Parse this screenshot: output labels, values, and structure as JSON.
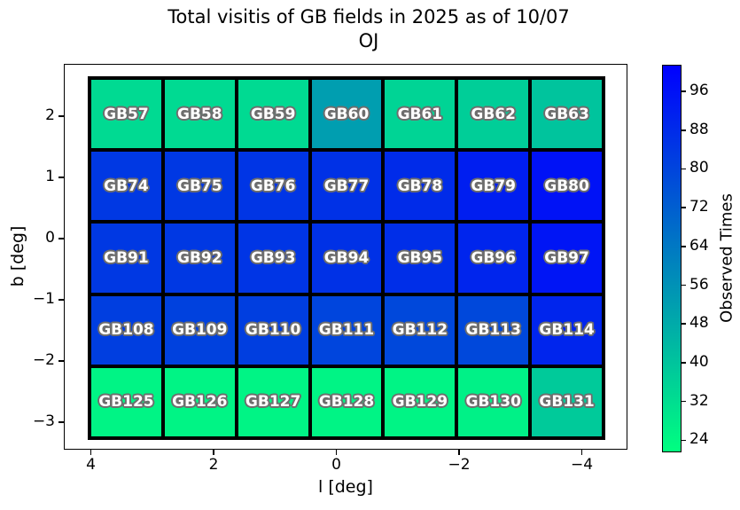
{
  "title": {
    "line1": "Total visitis of GB fields in 2025 as of 10/07",
    "line2": "OJ"
  },
  "chart_data": {
    "type": "heatmap",
    "title": "Total visitis of GB fields in 2025 as of 10/07",
    "subtitle": "OJ",
    "xlabel": "l [deg]",
    "ylabel": "b [deg]",
    "x_axis_reversed": true,
    "x_ticks": [
      {
        "value": 4,
        "label": "4"
      },
      {
        "value": 2,
        "label": "2"
      },
      {
        "value": 0,
        "label": "0"
      },
      {
        "value": -2,
        "label": "−2"
      },
      {
        "value": -4,
        "label": "−4"
      }
    ],
    "y_ticks": [
      {
        "value": 2,
        "label": "2"
      },
      {
        "value": 1,
        "label": "1"
      },
      {
        "value": 0,
        "label": "0"
      },
      {
        "value": -1,
        "label": "−1"
      },
      {
        "value": -2,
        "label": "−2"
      },
      {
        "value": -3,
        "label": "−3"
      }
    ],
    "colormap": "winter_r",
    "vmin": 21.5,
    "vmax": 101.5,
    "values_estimated_from_colormap": true,
    "colorbar": {
      "label": "Observed Times",
      "ticks": [
        96,
        88,
        80,
        72,
        64,
        56,
        48,
        40,
        32,
        24
      ],
      "position": "right"
    },
    "l_centers": [
      3.4,
      2.2,
      1.0,
      -0.2,
      -1.4,
      -2.6,
      -3.8
    ],
    "rows": [
      {
        "b_center": 2.1,
        "fields": [
          {
            "name": "GB57",
            "observed_times": 33
          },
          {
            "name": "GB58",
            "observed_times": 33
          },
          {
            "name": "GB59",
            "observed_times": 33
          },
          {
            "name": "GB60",
            "observed_times": 52
          },
          {
            "name": "GB61",
            "observed_times": 35
          },
          {
            "name": "GB62",
            "observed_times": 37
          },
          {
            "name": "GB63",
            "observed_times": 40
          }
        ]
      },
      {
        "b_center": 0.9,
        "fields": [
          {
            "name": "GB74",
            "observed_times": 84
          },
          {
            "name": "GB75",
            "observed_times": 84
          },
          {
            "name": "GB76",
            "observed_times": 85
          },
          {
            "name": "GB77",
            "observed_times": 86
          },
          {
            "name": "GB78",
            "observed_times": 88
          },
          {
            "name": "GB79",
            "observed_times": 92
          },
          {
            "name": "GB80",
            "observed_times": 96
          }
        ]
      },
      {
        "b_center": -0.3,
        "fields": [
          {
            "name": "GB91",
            "observed_times": 84
          },
          {
            "name": "GB92",
            "observed_times": 84
          },
          {
            "name": "GB93",
            "observed_times": 85
          },
          {
            "name": "GB94",
            "observed_times": 86
          },
          {
            "name": "GB95",
            "observed_times": 87
          },
          {
            "name": "GB96",
            "observed_times": 90
          },
          {
            "name": "GB97",
            "observed_times": 95
          }
        ]
      },
      {
        "b_center": -1.5,
        "fields": [
          {
            "name": "GB108",
            "observed_times": 82
          },
          {
            "name": "GB109",
            "observed_times": 81
          },
          {
            "name": "GB110",
            "observed_times": 82
          },
          {
            "name": "GB111",
            "observed_times": 80
          },
          {
            "name": "GB112",
            "observed_times": 79
          },
          {
            "name": "GB113",
            "observed_times": 79
          },
          {
            "name": "GB114",
            "observed_times": 90
          }
        ]
      },
      {
        "b_center": -2.7,
        "fields": [
          {
            "name": "GB125",
            "observed_times": 25
          },
          {
            "name": "GB126",
            "observed_times": 25
          },
          {
            "name": "GB127",
            "observed_times": 25
          },
          {
            "name": "GB128",
            "observed_times": 25
          },
          {
            "name": "GB129",
            "observed_times": 25
          },
          {
            "name": "GB130",
            "observed_times": 26
          },
          {
            "name": "GB131",
            "observed_times": 38
          }
        ]
      }
    ]
  }
}
